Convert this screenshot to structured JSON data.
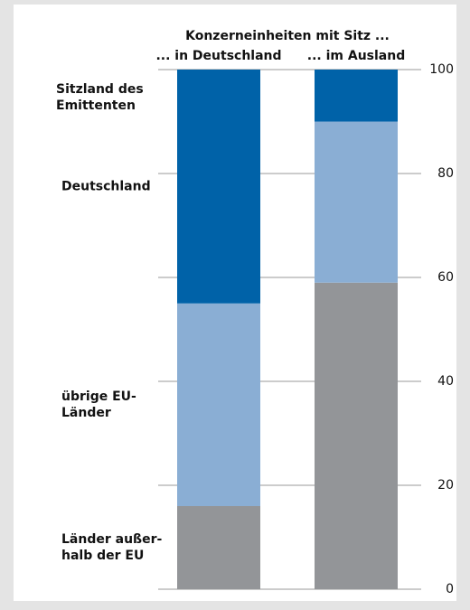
{
  "chart_data": {
    "type": "stacked_bar",
    "title": "Konzerneinheiten mit Sitz ...",
    "legend_title": "Sitzland des\nEmittenten",
    "categories": [
      "... in Deutschland",
      "... im Ausland"
    ],
    "series": [
      {
        "name": "Länder außer-\nhalb der EU",
        "color": "#939598",
        "values": [
          16,
          59
        ]
      },
      {
        "name": "übrige EU-\nLänder",
        "color": "#8aaed4",
        "values": [
          39,
          31
        ]
      },
      {
        "name": "Deutschland",
        "color": "#0062a8",
        "values": [
          45,
          10
        ]
      }
    ],
    "ylim": [
      0,
      100
    ],
    "yticks": [
      0,
      20,
      40,
      60,
      80,
      100
    ],
    "grid": true
  }
}
